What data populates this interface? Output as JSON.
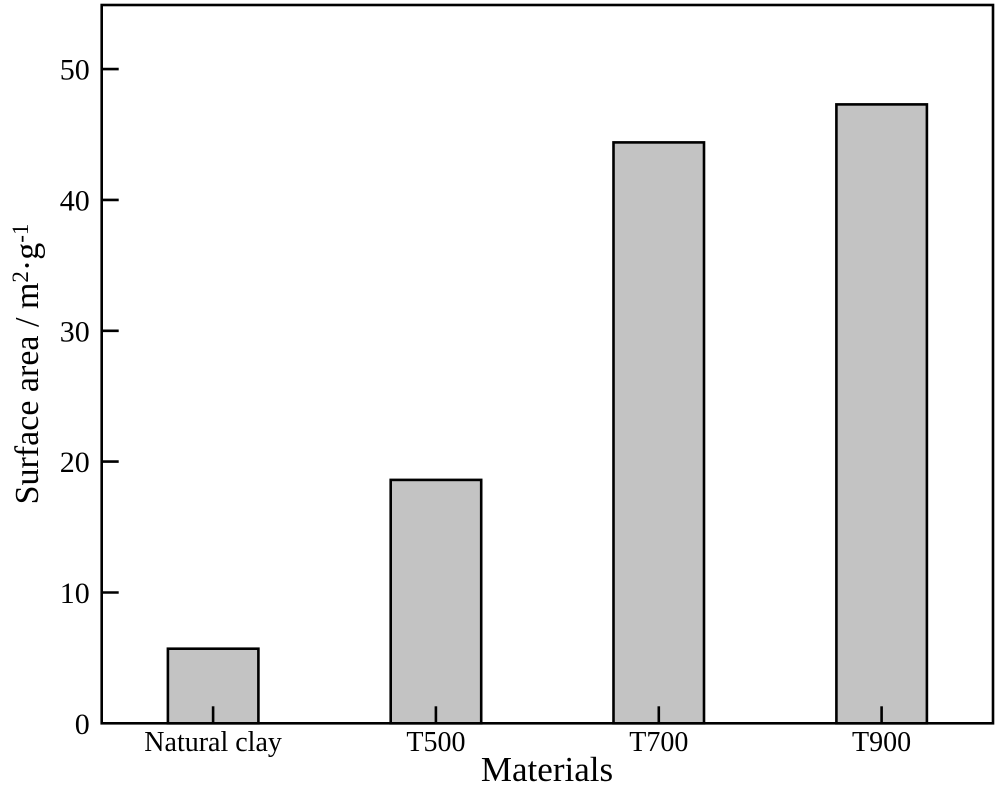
{
  "figure": {
    "background": "#ffffff"
  },
  "chart_data": {
    "type": "bar",
    "categories": [
      "Natural clay",
      "T500",
      "T700",
      "T900"
    ],
    "values": [
      5.7,
      18.6,
      44.4,
      47.3
    ],
    "title": "",
    "xlabel": "Materials",
    "ylabel": "Surface area / m²·g⁻¹",
    "ylabel_segments": [
      {
        "text": "Surface area / m",
        "sup": false
      },
      {
        "text": "2",
        "sup": true
      },
      {
        "text": "·g",
        "sup": false
      },
      {
        "text": "-1",
        "sup": true
      }
    ],
    "yticks": [
      0,
      10,
      20,
      30,
      40,
      50
    ],
    "ylim": [
      0,
      54.9
    ],
    "grid": false,
    "legend": null,
    "tick_direction": "in",
    "bar_color": "#c3c3c3",
    "bar_edge_color": "#000000",
    "axis_color": "#000000",
    "text_color": "#000000"
  }
}
